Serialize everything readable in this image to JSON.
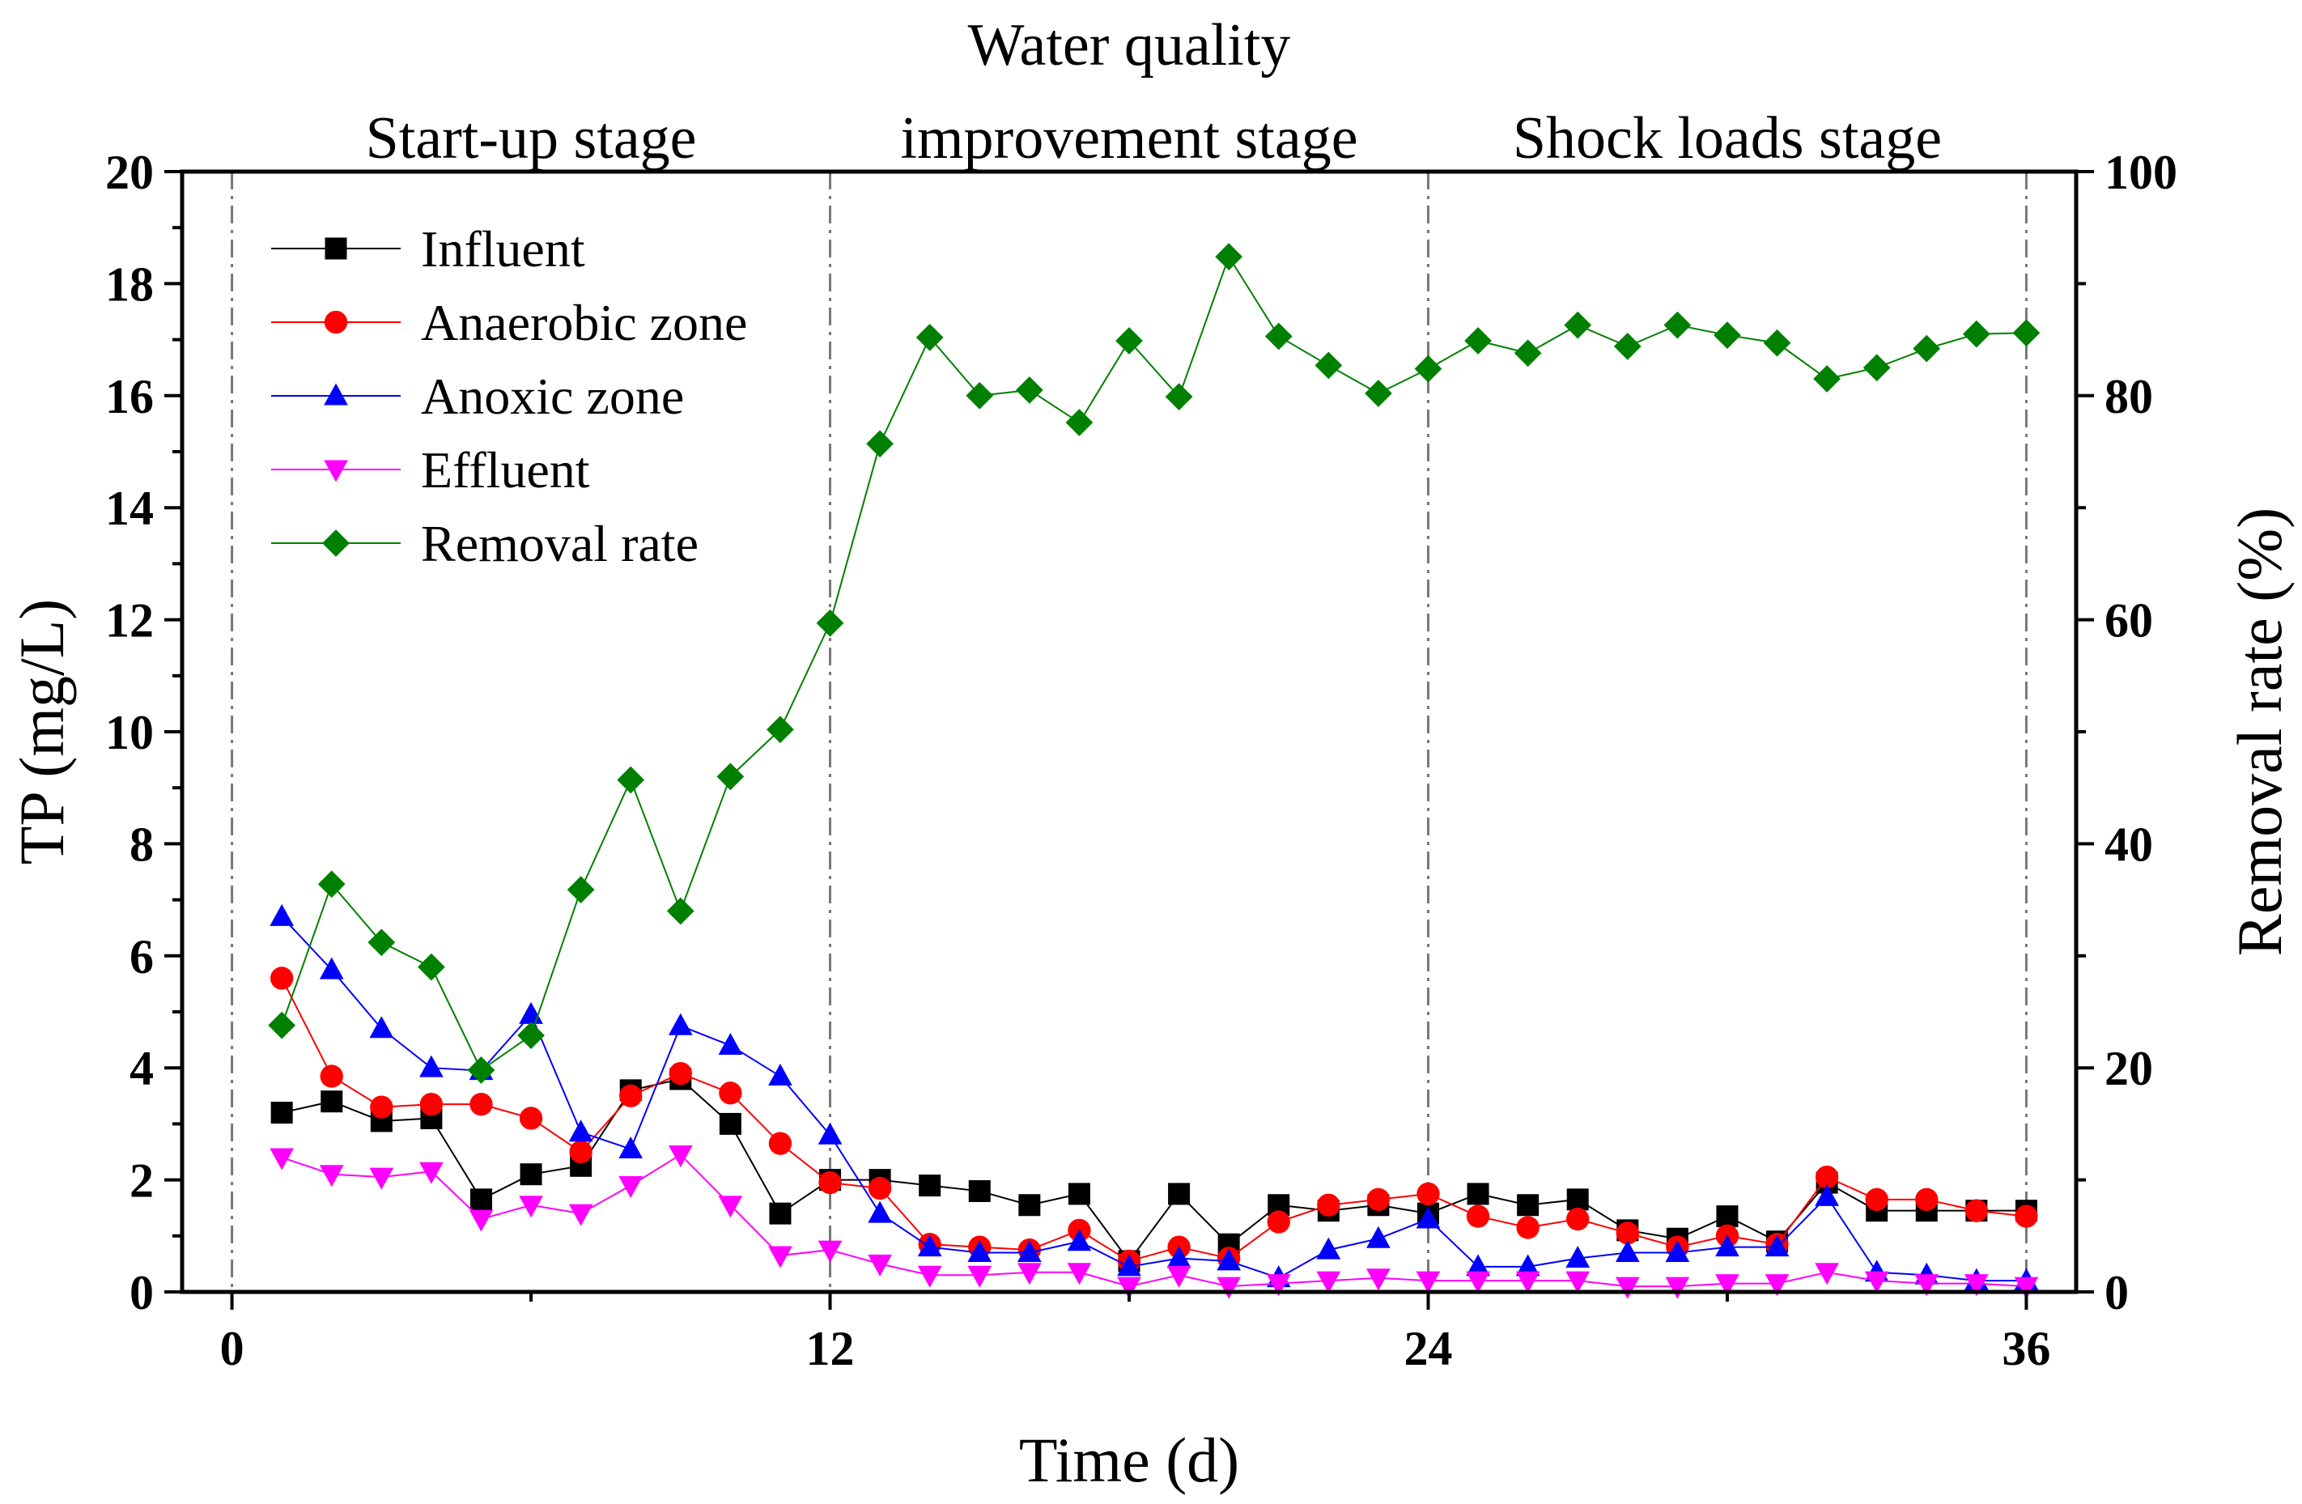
{
  "chart_data": {
    "type": "line",
    "xlabel": "Time (d)",
    "ylabel": "TP (mg/L)",
    "y2label": "Removal rate (%)",
    "xlim": [
      -1,
      37
    ],
    "ylim": [
      0,
      20
    ],
    "y2lim": [
      0,
      100
    ],
    "xticks": [
      0,
      12,
      24,
      36
    ],
    "yticks": [
      0,
      2,
      4,
      6,
      8,
      10,
      12,
      14,
      16,
      18,
      20
    ],
    "y2ticks": [
      0,
      20,
      40,
      60,
      80,
      100
    ],
    "stage_boundaries": [
      0,
      12,
      24,
      36
    ],
    "stages": [
      {
        "label_lines": [
          "Start-up stage"
        ]
      },
      {
        "label_lines": [
          "Water quality",
          "improvement stage"
        ]
      },
      {
        "label_lines": [
          "Shock loads stage"
        ]
      }
    ],
    "legend_position": "top-left",
    "x": [
      1,
      2,
      3,
      4,
      5,
      6,
      7,
      8,
      9,
      10,
      11,
      12,
      13,
      14,
      15,
      16,
      17,
      18,
      19,
      20,
      21,
      22,
      23,
      24,
      25,
      26,
      27,
      28,
      29,
      30,
      31,
      32,
      33,
      34,
      35,
      36
    ],
    "series": [
      {
        "name": "Influent",
        "axis": "left",
        "marker": "square",
        "color": "#000000",
        "values": [
          3.2,
          3.4,
          3.05,
          3.1,
          1.65,
          2.1,
          2.25,
          3.6,
          3.8,
          3.0,
          1.4,
          2.0,
          2.0,
          1.9,
          1.8,
          1.55,
          1.75,
          0.55,
          1.75,
          0.85,
          1.55,
          1.45,
          1.55,
          1.4,
          1.75,
          1.55,
          1.65,
          1.1,
          0.95,
          1.35,
          0.9,
          1.95,
          1.45,
          1.45,
          1.45,
          1.45
        ]
      },
      {
        "name": "Anaerobic zone",
        "axis": "left",
        "marker": "circle",
        "color": "#ff0000",
        "values": [
          5.6,
          3.85,
          3.3,
          3.35,
          3.35,
          3.1,
          2.5,
          3.5,
          3.9,
          3.55,
          2.65,
          1.95,
          1.85,
          0.85,
          0.8,
          0.75,
          1.1,
          0.55,
          0.8,
          0.6,
          1.25,
          1.55,
          1.65,
          1.75,
          1.35,
          1.15,
          1.3,
          1.05,
          0.8,
          1.0,
          0.85,
          2.05,
          1.65,
          1.65,
          1.45,
          1.35
        ]
      },
      {
        "name": "Anoxic zone",
        "axis": "left",
        "marker": "triangle-up",
        "color": "#0000ff",
        "values": [
          6.7,
          5.75,
          4.7,
          4.0,
          3.95,
          4.95,
          2.85,
          2.55,
          4.75,
          4.4,
          3.85,
          2.8,
          1.4,
          0.8,
          0.7,
          0.7,
          0.9,
          0.45,
          0.6,
          0.55,
          0.25,
          0.75,
          0.95,
          1.3,
          0.45,
          0.45,
          0.6,
          0.7,
          0.7,
          0.8,
          0.8,
          1.7,
          0.35,
          0.3,
          0.2,
          0.2
        ]
      },
      {
        "name": "Effluent",
        "axis": "left",
        "marker": "triangle-down",
        "color": "#ff00ff",
        "values": [
          2.4,
          2.1,
          2.05,
          2.15,
          1.3,
          1.55,
          1.4,
          1.9,
          2.45,
          1.55,
          0.65,
          0.75,
          0.5,
          0.3,
          0.3,
          0.35,
          0.35,
          0.1,
          0.3,
          0.1,
          0.15,
          0.2,
          0.25,
          0.2,
          0.2,
          0.2,
          0.2,
          0.1,
          0.1,
          0.15,
          0.15,
          0.35,
          0.2,
          0.15,
          0.15,
          0.1
        ]
      },
      {
        "name": "Removal rate",
        "axis": "right",
        "marker": "diamond",
        "color": "#008000",
        "values": [
          23.8,
          36.4,
          31.2,
          29.0,
          19.8,
          22.9,
          35.9,
          45.7,
          34.0,
          46.0,
          50.2,
          59.7,
          75.7,
          85.2,
          80.0,
          80.5,
          77.6,
          84.9,
          79.9,
          92.4,
          85.3,
          82.7,
          80.2,
          82.4,
          84.9,
          83.8,
          86.3,
          84.4,
          86.3,
          85.4,
          84.7,
          81.5,
          82.5,
          84.2,
          85.5,
          85.6
        ]
      }
    ]
  }
}
